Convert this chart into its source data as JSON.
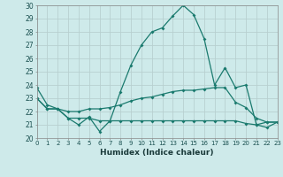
{
  "xlabel": "Humidex (Indice chaleur)",
  "x": [
    0,
    1,
    2,
    3,
    4,
    5,
    6,
    7,
    8,
    9,
    10,
    11,
    12,
    13,
    14,
    15,
    16,
    17,
    18,
    19,
    20,
    21,
    22,
    23
  ],
  "line1": [
    23.8,
    22.5,
    22.2,
    21.5,
    21.0,
    21.6,
    20.5,
    21.3,
    23.5,
    25.5,
    27.0,
    28.0,
    28.3,
    29.2,
    30.0,
    29.3,
    27.5,
    24.0,
    25.3,
    23.8,
    24.0,
    21.0,
    20.8,
    21.2
  ],
  "line2": [
    23.0,
    22.2,
    22.2,
    22.0,
    22.0,
    22.2,
    22.2,
    22.3,
    22.5,
    22.8,
    23.0,
    23.1,
    23.3,
    23.5,
    23.6,
    23.6,
    23.7,
    23.8,
    23.8,
    22.7,
    22.3,
    21.5,
    21.2,
    21.2
  ],
  "line3": [
    23.0,
    22.2,
    22.2,
    21.5,
    21.5,
    21.5,
    21.3,
    21.3,
    21.3,
    21.3,
    21.3,
    21.3,
    21.3,
    21.3,
    21.3,
    21.3,
    21.3,
    21.3,
    21.3,
    21.3,
    21.1,
    21.0,
    21.2,
    21.2
  ],
  "ylim": [
    20,
    30
  ],
  "yticks": [
    20,
    21,
    22,
    23,
    24,
    25,
    26,
    27,
    28,
    29,
    30
  ],
  "bg_color": "#ceeaea",
  "line_color": "#1a7a6e",
  "grid_color": "#b8d0d0"
}
